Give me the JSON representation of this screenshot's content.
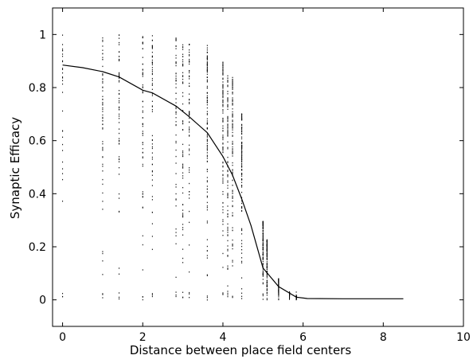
{
  "chart_data": {
    "type": "scatter",
    "title": "",
    "xlabel": "Distance between place field centers",
    "ylabel": "Synaptic Efficacy",
    "xlim": [
      -0.25,
      10
    ],
    "ylim": [
      -0.1,
      1.1
    ],
    "xticks": [
      0,
      2,
      4,
      6,
      8,
      10
    ],
    "yticks": [
      0,
      0.2,
      0.4,
      0.6,
      0.8,
      1
    ],
    "xtick_labels": [
      "0",
      "2",
      "4",
      "6",
      "8",
      "10"
    ],
    "ytick_labels": [
      "0",
      "0.2",
      "0.4",
      "0.6",
      "0.8",
      "1"
    ],
    "grid": false,
    "series": [
      {
        "kind": "vertical-point-columns",
        "color": "#000000",
        "columns": [
          {
            "x": 0.0,
            "y_min": 0.0,
            "y_max": 1.0,
            "density": "sparse"
          },
          {
            "x": 1.0,
            "y_min": 0.0,
            "y_max": 1.0,
            "density": "medium"
          },
          {
            "x": 1.41,
            "y_min": 0.0,
            "y_max": 1.0,
            "density": "medium"
          },
          {
            "x": 2.0,
            "y_min": 0.0,
            "y_max": 1.0,
            "density": "medium"
          },
          {
            "x": 2.24,
            "y_min": 0.0,
            "y_max": 1.0,
            "density": "medium"
          },
          {
            "x": 2.83,
            "y_min": 0.0,
            "y_max": 0.99,
            "density": "medium"
          },
          {
            "x": 3.0,
            "y_min": 0.0,
            "y_max": 0.99,
            "density": "medium"
          },
          {
            "x": 3.16,
            "y_min": 0.0,
            "y_max": 0.98,
            "density": "medium"
          },
          {
            "x": 3.61,
            "y_min": 0.0,
            "y_max": 0.96,
            "density": "dense"
          },
          {
            "x": 4.0,
            "y_min": 0.0,
            "y_max": 0.9,
            "density": "dense"
          },
          {
            "x": 4.12,
            "y_min": 0.0,
            "y_max": 0.87,
            "density": "dense"
          },
          {
            "x": 4.24,
            "y_min": 0.0,
            "y_max": 0.84,
            "density": "dense"
          },
          {
            "x": 4.47,
            "y_min": 0.0,
            "y_max": 0.71,
            "density": "dense"
          },
          {
            "x": 5.0,
            "y_min": 0.0,
            "y_max": 0.3,
            "density": "dense"
          },
          {
            "x": 5.1,
            "y_min": 0.0,
            "y_max": 0.23,
            "density": "dense"
          },
          {
            "x": 5.39,
            "y_min": 0.0,
            "y_max": 0.08,
            "density": "dense"
          },
          {
            "x": 5.66,
            "y_min": 0.0,
            "y_max": 0.03,
            "density": "dense"
          },
          {
            "x": 5.83,
            "y_min": 0.0,
            "y_max": 0.015,
            "density": "dense"
          }
        ]
      },
      {
        "kind": "mean-curve",
        "color": "#000000",
        "x": [
          0,
          0.5,
          1.0,
          1.41,
          2.0,
          2.24,
          2.83,
          3.16,
          3.61,
          4.0,
          4.24,
          4.47,
          4.7,
          5.0,
          5.39,
          5.83,
          6.1,
          7.0,
          8.5
        ],
        "y": [
          0.885,
          0.875,
          0.86,
          0.84,
          0.79,
          0.78,
          0.73,
          0.69,
          0.63,
          0.54,
          0.47,
          0.38,
          0.28,
          0.12,
          0.05,
          0.01,
          0.005,
          0.004,
          0.004
        ]
      }
    ]
  }
}
